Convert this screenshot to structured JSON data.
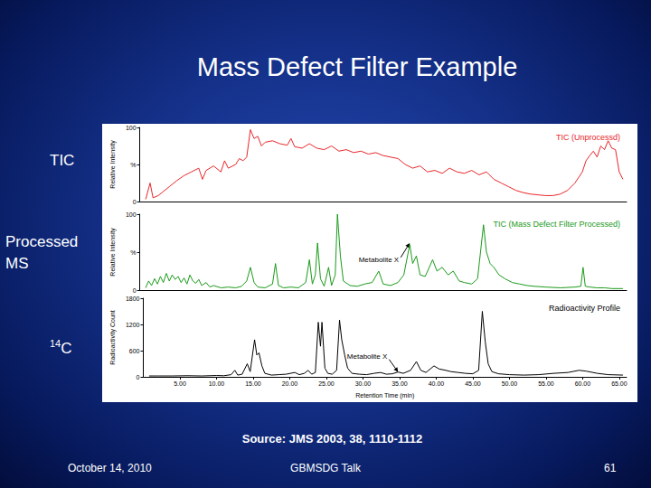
{
  "slide": {
    "title": "Mass Defect Filter Example",
    "side_labels": [
      {
        "text": "TIC"
      },
      {
        "text": "Processed MS"
      },
      {
        "sup": "14",
        "text": "C"
      }
    ],
    "source": "Source: JMS 2003, 38, 1110-1112",
    "footer": {
      "date": "October 14, 2010",
      "event": "GBMSDG Talk",
      "page": "61"
    }
  },
  "chart_data": [
    {
      "type": "line",
      "title": "TIC (Unprocessd)",
      "y_label": "Relative Intensity",
      "color": "#e8262a",
      "xlim": [
        0,
        66
      ],
      "ylim": [
        0,
        100
      ],
      "yticks": [
        0,
        {
          "value": 50,
          "label": "%"
        },
        100
      ],
      "grid": false,
      "tick_labels": "y",
      "x": [
        0.8,
        1.4,
        1.8,
        2.5,
        3,
        4,
        5,
        6,
        7,
        8,
        8.5,
        9,
        10,
        11,
        11.5,
        12,
        13,
        13.5,
        14,
        14.5,
        15,
        15.5,
        16,
        16.5,
        17,
        18,
        19,
        20,
        20.5,
        21,
        22,
        23,
        24,
        25,
        26,
        27,
        28,
        29,
        30,
        31,
        32,
        33,
        34,
        35,
        36,
        37,
        38,
        39,
        40,
        41,
        42,
        43,
        44,
        45,
        46,
        47,
        48,
        49,
        50,
        51,
        52,
        53,
        54,
        55,
        56,
        57,
        58,
        59,
        60,
        60.5,
        61,
        61.5,
        62,
        62.5,
        63,
        63.5,
        64,
        64.5,
        65,
        65.5
      ],
      "values": [
        3,
        25,
        5,
        8,
        12,
        20,
        28,
        35,
        40,
        45,
        30,
        42,
        48,
        40,
        55,
        45,
        50,
        58,
        55,
        60,
        97,
        85,
        88,
        75,
        80,
        82,
        78,
        76,
        85,
        74,
        72,
        78,
        72,
        70,
        75,
        68,
        70,
        66,
        68,
        64,
        66,
        62,
        60,
        58,
        50,
        45,
        48,
        40,
        42,
        38,
        45,
        40,
        38,
        42,
        36,
        40,
        30,
        25,
        20,
        15,
        12,
        10,
        9,
        8,
        8,
        10,
        15,
        25,
        40,
        55,
        62,
        68,
        60,
        75,
        70,
        82,
        72,
        70,
        40,
        30
      ]
    },
    {
      "type": "line",
      "title": "TIC (Mass Defect Filter Processed)",
      "y_label": "Relative Intensity",
      "color": "#1a9a1a",
      "xlim": [
        0,
        66
      ],
      "ylim": [
        0,
        100
      ],
      "yticks": [
        0,
        {
          "value": 50,
          "label": "%"
        },
        100
      ],
      "grid": false,
      "tick_labels": "y",
      "annotations": [
        {
          "text": "Metabolite X",
          "x": 36.6,
          "y": 62
        }
      ],
      "x": [
        0.8,
        1.2,
        1.6,
        2,
        2.4,
        2.8,
        3.2,
        3.6,
        4,
        4.4,
        4.8,
        5.2,
        5.6,
        6,
        6.4,
        6.8,
        7.2,
        7.6,
        8,
        8.4,
        9,
        9.5,
        10,
        11,
        12,
        13,
        13.8,
        14.5,
        15,
        15.5,
        16,
        17,
        18,
        18.4,
        18.8,
        19.5,
        20.5,
        21.5,
        22.5,
        23,
        23.4,
        23.8,
        24.1,
        24.5,
        25,
        25.6,
        26,
        26.5,
        26.8,
        27.2,
        27.6,
        28.5,
        29.5,
        30.5,
        31.5,
        32.4,
        33,
        34,
        35,
        35.8,
        36.6,
        37,
        37.5,
        38,
        38.7,
        39.7,
        40.3,
        41,
        41.8,
        42.5,
        43.3,
        44,
        45,
        45.8,
        46.6,
        47,
        47.5,
        48,
        48.7,
        49.5,
        50.5,
        51.5,
        52.5,
        53.5,
        55,
        57,
        59,
        59.8,
        60.1,
        60.4,
        61,
        62,
        63,
        64,
        65.5
      ],
      "values": [
        3,
        12,
        6,
        15,
        8,
        18,
        10,
        22,
        12,
        20,
        14,
        18,
        10,
        16,
        8,
        20,
        12,
        9,
        14,
        6,
        10,
        4,
        6,
        3,
        4,
        3,
        5,
        12,
        30,
        10,
        4,
        3,
        8,
        35,
        6,
        3,
        4,
        3,
        10,
        40,
        8,
        20,
        62,
        15,
        5,
        30,
        6,
        20,
        100,
        45,
        12,
        6,
        5,
        8,
        10,
        25,
        8,
        6,
        10,
        20,
        60,
        35,
        45,
        20,
        18,
        40,
        25,
        30,
        20,
        25,
        12,
        10,
        8,
        15,
        86,
        50,
        35,
        30,
        20,
        15,
        10,
        8,
        6,
        5,
        4,
        3,
        4,
        5,
        30,
        5,
        4,
        3,
        3,
        2,
        2
      ]
    },
    {
      "type": "line",
      "title": "Radioactivity Profile",
      "y_label": "Radioactivity Count",
      "x_label": "Retention Time (min)",
      "color": "#000000",
      "xlim": [
        0,
        66
      ],
      "ylim": [
        0,
        1800
      ],
      "yticks": [
        0,
        600,
        1200,
        1800
      ],
      "xticks": [
        {
          "value": 5,
          "label": "5.00"
        },
        {
          "value": 10,
          "label": "10.00"
        },
        {
          "value": 15,
          "label": "15.00"
        },
        {
          "value": 20,
          "label": "20.00"
        },
        {
          "value": 25,
          "label": "25.00"
        },
        {
          "value": 30,
          "label": "30.00"
        },
        {
          "value": 35,
          "label": "35.00"
        },
        {
          "value": 40,
          "label": "40.00"
        },
        {
          "value": 45,
          "label": "45.00"
        },
        {
          "value": 50,
          "label": "50.00"
        },
        {
          "value": 55,
          "label": "55.00"
        },
        {
          "value": 60,
          "label": "60.00"
        },
        {
          "value": 65,
          "label": "65.00"
        }
      ],
      "grid": false,
      "annotations": [
        {
          "text": "Metabolite X",
          "x": 34.8,
          "y": 110
        }
      ],
      "x": [
        0.8,
        2,
        4,
        6,
        8,
        10,
        11,
        12,
        12.5,
        12.9,
        13.5,
        14.2,
        14.6,
        15.2,
        15.5,
        15.8,
        16.2,
        16.6,
        17.5,
        18.5,
        19.5,
        20.7,
        21.3,
        22,
        22.5,
        23,
        23.5,
        23.9,
        24.2,
        24.4,
        24.8,
        25.2,
        25.8,
        26.4,
        26.8,
        27.1,
        27.5,
        27.9,
        28.5,
        29.5,
        30.5,
        31.5,
        32.4,
        33.2,
        34,
        34.8,
        35.5,
        36.5,
        37.3,
        37.9,
        38.6,
        39.7,
        40.4,
        41.3,
        42,
        43,
        44,
        45,
        45.8,
        46.3,
        46.7,
        47.1,
        47.6,
        48.5,
        50,
        52,
        54,
        56,
        58,
        59.5,
        60.5,
        62,
        63.5,
        65.5
      ],
      "values": [
        20,
        20,
        20,
        25,
        20,
        30,
        25,
        50,
        150,
        40,
        60,
        300,
        120,
        850,
        500,
        550,
        250,
        80,
        40,
        50,
        60,
        100,
        50,
        80,
        150,
        60,
        100,
        1250,
        700,
        1250,
        200,
        80,
        60,
        150,
        1300,
        850,
        500,
        200,
        80,
        60,
        50,
        80,
        100,
        60,
        70,
        110,
        80,
        150,
        350,
        150,
        100,
        250,
        180,
        150,
        120,
        100,
        80,
        70,
        150,
        1500,
        800,
        300,
        120,
        70,
        50,
        40,
        50,
        80,
        100,
        150,
        130,
        80,
        50,
        40
      ]
    }
  ]
}
